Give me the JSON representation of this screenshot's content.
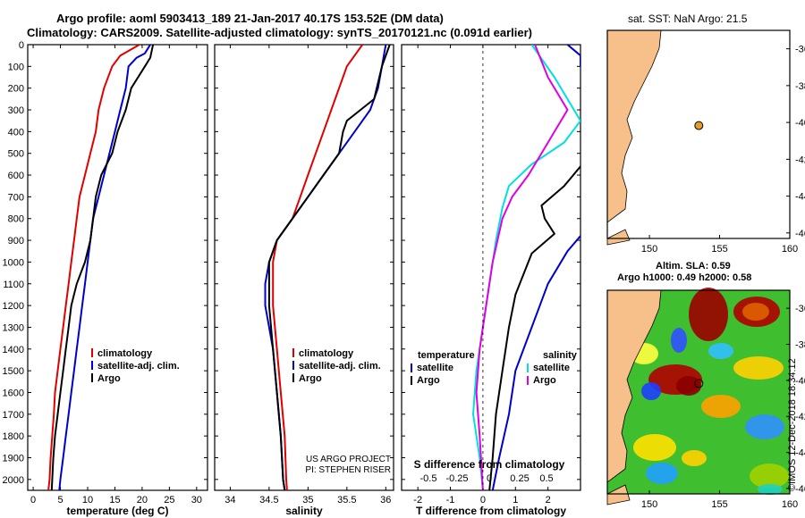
{
  "header": {
    "line1": "Argo profile: aoml 5903413_189 21-Jan-2017 40.17S 153.52E (DM data)",
    "line2": "Climatology: CARS2009. Satellite-adjusted climatology: synTS_20170121.nc (0.091d earlier)"
  },
  "colors": {
    "climatology": "#e00000",
    "satellite": "#0000cc",
    "argo": "#000000",
    "sal_sat": "#00e0e0",
    "sal_argo": "#e000e0",
    "land": "#f7c08a"
  },
  "depth_ticks": [
    "0",
    "100",
    "200",
    "300",
    "400",
    "500",
    "600",
    "700",
    "800",
    "900",
    "1000",
    "1100",
    "1200",
    "1300",
    "1400",
    "1500",
    "1600",
    "1700",
    "1800",
    "1900",
    "2000"
  ],
  "chart_data": [
    {
      "type": "line",
      "panel": "temperature",
      "xlabel": "temperature (deg C)",
      "xlim": [
        -1,
        32
      ],
      "ylim": [
        2050,
        0
      ],
      "xticks": [
        "0",
        "5",
        "10",
        "15",
        "20",
        "25",
        "30"
      ],
      "legend": [
        "climatology",
        "satellite-adj. clim.",
        "Argo"
      ],
      "series": [
        {
          "name": "climatology",
          "color": "#e00000",
          "points": [
            [
              19.5,
              0
            ],
            [
              16,
              50
            ],
            [
              14.5,
              100
            ],
            [
              13,
              200
            ],
            [
              12,
              300
            ],
            [
              11.5,
              400
            ],
            [
              10.5,
              500
            ],
            [
              9.5,
              600
            ],
            [
              8.5,
              700
            ],
            [
              8,
              800
            ],
            [
              7.5,
              900
            ],
            [
              7,
              1000
            ],
            [
              6.5,
              1100
            ],
            [
              6,
              1200
            ],
            [
              5.5,
              1300
            ],
            [
              5,
              1400
            ],
            [
              4.5,
              1500
            ],
            [
              4,
              1600
            ],
            [
              3.8,
              1700
            ],
            [
              3.5,
              1800
            ],
            [
              3.2,
              1900
            ],
            [
              3,
              2000
            ],
            [
              2.8,
              2050
            ]
          ]
        },
        {
          "name": "satellite-adj. clim.",
          "color": "#0000cc",
          "points": [
            [
              21.5,
              0
            ],
            [
              20.5,
              40
            ],
            [
              19,
              60
            ],
            [
              17.5,
              100
            ],
            [
              17,
              200
            ],
            [
              16,
              300
            ],
            [
              15,
              400
            ],
            [
              14,
              500
            ],
            [
              13,
              600
            ],
            [
              12,
              700
            ],
            [
              11,
              800
            ],
            [
              10.5,
              900
            ],
            [
              10,
              1000
            ],
            [
              9.5,
              1100
            ],
            [
              9,
              1200
            ],
            [
              8.5,
              1300
            ],
            [
              8,
              1400
            ],
            [
              7.5,
              1500
            ],
            [
              7,
              1600
            ],
            [
              6.5,
              1700
            ],
            [
              6,
              1800
            ],
            [
              5.5,
              1900
            ],
            [
              5,
              2000
            ],
            [
              4.8,
              2050
            ]
          ]
        },
        {
          "name": "Argo",
          "color": "#000000",
          "points": [
            [
              22,
              0
            ],
            [
              21.5,
              60
            ],
            [
              20.5,
              100
            ],
            [
              18,
              200
            ],
            [
              17,
              300
            ],
            [
              15.5,
              400
            ],
            [
              14.5,
              500
            ],
            [
              12.5,
              600
            ],
            [
              11.5,
              700
            ],
            [
              11,
              800
            ],
            [
              10.5,
              900
            ],
            [
              9.5,
              1000
            ],
            [
              8,
              1100
            ],
            [
              7,
              1200
            ],
            [
              6.5,
              1300
            ],
            [
              6,
              1400
            ],
            [
              5.5,
              1500
            ],
            [
              5,
              1600
            ],
            [
              4.5,
              1700
            ],
            [
              4,
              1800
            ],
            [
              3.7,
              1900
            ],
            [
              3.5,
              2000
            ],
            [
              3.4,
              2050
            ]
          ]
        }
      ]
    },
    {
      "type": "line",
      "panel": "salinity",
      "xlabel": "salinity",
      "xlim": [
        33.8,
        36.1
      ],
      "ylim": [
        2050,
        0
      ],
      "xticks": [
        "34",
        "34.5",
        "35",
        "35.5",
        "36"
      ],
      "legend": [
        "climatology",
        "satellite-adj. clim.",
        "Argo"
      ],
      "annotation": [
        "US ARGO PROJECT",
        "PI: STEPHEN RISER"
      ],
      "series": [
        {
          "name": "climatology",
          "color": "#e00000",
          "points": [
            [
              35.7,
              0
            ],
            [
              35.5,
              100
            ],
            [
              35.4,
              200
            ],
            [
              35.3,
              300
            ],
            [
              35.2,
              400
            ],
            [
              35.1,
              500
            ],
            [
              35,
              600
            ],
            [
              34.9,
              700
            ],
            [
              34.8,
              800
            ],
            [
              34.6,
              900
            ],
            [
              34.55,
              1000
            ],
            [
              34.55,
              1200
            ],
            [
              34.6,
              1400
            ],
            [
              34.65,
              1600
            ],
            [
              34.7,
              1800
            ],
            [
              34.72,
              2000
            ],
            [
              34.73,
              2050
            ]
          ]
        },
        {
          "name": "satellite-adj. clim.",
          "color": "#0000cc",
          "points": [
            [
              36,
              0
            ],
            [
              35.95,
              100
            ],
            [
              35.9,
              200
            ],
            [
              35.8,
              300
            ],
            [
              35.6,
              400
            ],
            [
              35.4,
              500
            ],
            [
              35.2,
              600
            ],
            [
              35,
              700
            ],
            [
              34.8,
              800
            ],
            [
              34.6,
              900
            ],
            [
              34.5,
              1000
            ],
            [
              34.45,
              1100
            ],
            [
              34.45,
              1200
            ],
            [
              34.5,
              1300
            ],
            [
              34.55,
              1400
            ],
            [
              34.6,
              1600
            ],
            [
              34.65,
              1800
            ],
            [
              34.68,
              2000
            ],
            [
              34.7,
              2050
            ]
          ]
        },
        {
          "name": "Argo",
          "color": "#000000",
          "points": [
            [
              36.05,
              0
            ],
            [
              35.95,
              100
            ],
            [
              35.85,
              250
            ],
            [
              35.5,
              350
            ],
            [
              35.45,
              400
            ],
            [
              35.4,
              500
            ],
            [
              35.2,
              600
            ],
            [
              35,
              700
            ],
            [
              34.8,
              800
            ],
            [
              34.6,
              900
            ],
            [
              34.5,
              1000
            ],
            [
              34.5,
              1200
            ],
            [
              34.55,
              1400
            ],
            [
              34.6,
              1600
            ],
            [
              34.65,
              1800
            ],
            [
              34.68,
              2000
            ],
            [
              34.7,
              2050
            ]
          ]
        }
      ]
    },
    {
      "type": "line",
      "panel": "difference",
      "xlabel": "T difference from climatology",
      "xlim": [
        -2.5,
        3
      ],
      "ylim": [
        2050,
        0
      ],
      "xticks": [
        "-2",
        "-1",
        "0",
        "1",
        "2"
      ],
      "s_axis_label": "S difference from climatology",
      "s_xticks": [
        "-0.5",
        "-0.25",
        "0",
        "0.25",
        "0.5"
      ],
      "legend_left": [
        "temperature",
        "satellite",
        "Argo"
      ],
      "legend_right": [
        "salinity",
        "satellite",
        "Argo"
      ],
      "series": [
        {
          "name": "satellite",
          "color": "#0000cc",
          "points": [
            [
              2.6,
              0
            ],
            [
              3,
              50
            ],
            [
              3,
              100
            ]
          ]
        },
        {
          "name": "satellite",
          "color": "#0000cc",
          "points": [
            [
              3,
              880
            ],
            [
              2.6,
              950
            ],
            [
              2,
              1100
            ],
            [
              1.5,
              1300
            ],
            [
              1,
              1500
            ],
            [
              0.8,
              1700
            ],
            [
              0.5,
              1900
            ],
            [
              0.3,
              2050
            ]
          ]
        },
        {
          "name": "Argo",
          "color": "#000000",
          "points": [
            [
              3,
              560
            ],
            [
              2.5,
              650
            ],
            [
              1.8,
              740
            ],
            [
              1.9,
              800
            ],
            [
              2.2,
              870
            ],
            [
              1.5,
              960
            ],
            [
              1,
              1150
            ],
            [
              0.8,
              1300
            ],
            [
              0.6,
              1500
            ],
            [
              0.4,
              1700
            ],
            [
              0.3,
              1900
            ],
            [
              0.2,
              2050
            ]
          ]
        },
        {
          "name": "satellite",
          "color": "#00e0e0",
          "points": [
            [
              1.5,
              0
            ],
            [
              2.2,
              150
            ],
            [
              2.8,
              300
            ],
            [
              3,
              350
            ],
            [
              2.5,
              450
            ],
            [
              1.5,
              550
            ],
            [
              0.8,
              650
            ],
            [
              0.6,
              750
            ],
            [
              0.4,
              900
            ],
            [
              0.2,
              1100
            ],
            [
              0,
              1300
            ],
            [
              -0.2,
              1500
            ],
            [
              -0.3,
              1700
            ],
            [
              -0.1,
              1900
            ],
            [
              0,
              2050
            ]
          ]
        },
        {
          "name": "Argo",
          "color": "#e000e0",
          "points": [
            [
              1.6,
              0
            ],
            [
              2,
              150
            ],
            [
              2.6,
              300
            ],
            [
              2.2,
              400
            ],
            [
              1.8,
              500
            ],
            [
              1.4,
              600
            ],
            [
              0.9,
              700
            ],
            [
              0.6,
              800
            ],
            [
              0.3,
              1000
            ],
            [
              0.1,
              1200
            ],
            [
              -0.1,
              1400
            ],
            [
              -0.2,
              1600
            ],
            [
              -0.1,
              1800
            ],
            [
              0,
              2050
            ]
          ]
        }
      ]
    }
  ],
  "map_top": {
    "title": "sat. SST: NaN Argo: 21.5",
    "xticks": [
      "150",
      "155",
      "160"
    ],
    "yticks": [
      "-36",
      "-38",
      "-40",
      "-42",
      "-44",
      "-46"
    ]
  },
  "map_bottom": {
    "title1": "Altim. SLA: 0.59",
    "title2": "Argo h1000: 0.49 h2000: 0.58",
    "xticks": [
      "150",
      "155",
      "160"
    ],
    "yticks": [
      "-36",
      "-38",
      "-40",
      "-42",
      "-44",
      "-46"
    ]
  },
  "watermark": "©IMOS 12-Dec-2018 18:34:12"
}
